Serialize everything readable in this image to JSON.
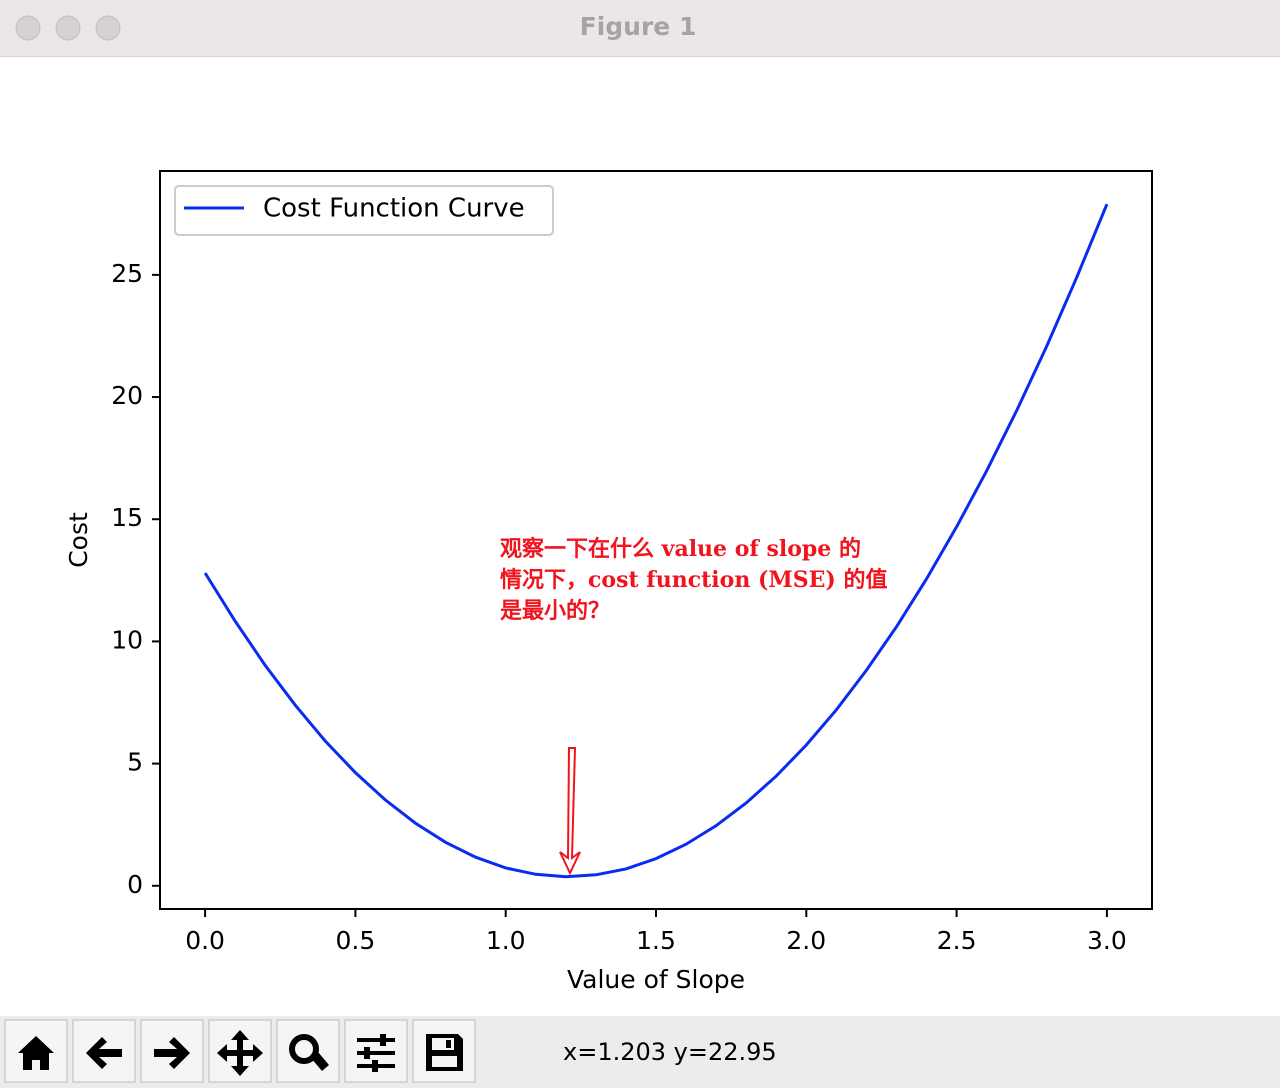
{
  "window": {
    "title": "Figure 1",
    "status": "x=1.203 y=22.95"
  },
  "chart_data": {
    "type": "line",
    "xlabel": "Value of Slope",
    "ylabel": "Cost",
    "x": [
      0,
      0.1,
      0.2,
      0.3,
      0.4,
      0.5,
      0.6,
      0.7,
      0.8,
      0.9,
      1.0,
      1.1,
      1.2,
      1.3,
      1.4,
      1.5,
      1.6,
      1.7,
      1.8,
      1.9,
      2.0,
      2.1,
      2.2,
      2.3,
      2.4,
      2.5,
      2.6,
      2.7,
      2.8,
      2.9,
      3.0
    ],
    "series": [
      {
        "name": "Cost Function Curve",
        "color": "#0a2bf0",
        "values": [
          12.8,
          10.83,
          9.02,
          7.39,
          5.92,
          4.63,
          3.51,
          2.56,
          1.78,
          1.17,
          0.73,
          0.47,
          0.37,
          0.45,
          0.69,
          1.11,
          1.7,
          2.46,
          3.39,
          4.49,
          5.76,
          7.2,
          8.82,
          10.6,
          12.56,
          14.69,
          16.98,
          19.45,
          22.09,
          24.91,
          27.89
        ]
      }
    ],
    "xlim": [
      -0.15,
      3.15
    ],
    "ylim": [
      -0.95,
      29.25
    ],
    "xticks": [
      {
        "value": 0,
        "label": "0.0"
      },
      0.5,
      {
        "value": 1,
        "label": "1.0"
      },
      1.5,
      {
        "value": 2,
        "label": "2.0"
      },
      2.5,
      {
        "value": 3,
        "label": "3.0"
      }
    ],
    "yticks": [
      0,
      5,
      10,
      15,
      20,
      25
    ],
    "legend": "upper left",
    "annotation": {
      "lines": [
        "观察一下在什么 value of slope 的",
        "情况下，cost function (MSE) 的值",
        "是最小的？"
      ],
      "color": "#f0141e"
    }
  }
}
